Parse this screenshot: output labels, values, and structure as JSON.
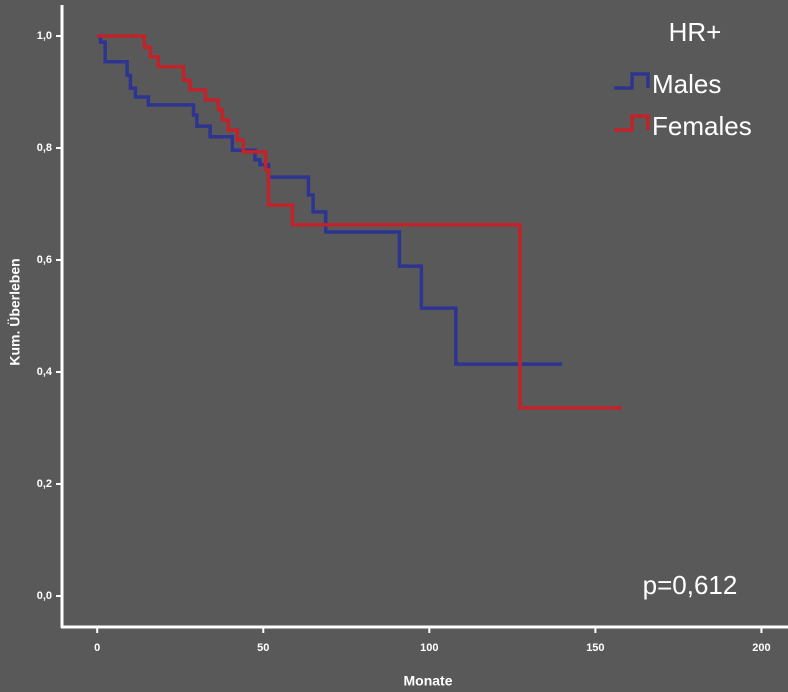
{
  "chart_data": {
    "type": "step",
    "title": "HR+",
    "xlabel": "Monate",
    "ylabel": "Kum. Überleben",
    "annotation": "p=0,612",
    "xlim": [
      -10.6,
      208
    ],
    "ylim": [
      0,
      1
    ],
    "xticks": [
      0,
      50,
      100,
      150,
      200
    ],
    "yticks": [
      {
        "value": 0,
        "label": "0,0"
      },
      {
        "value": 0.2,
        "label": "0,2"
      },
      {
        "value": 0.4,
        "label": "0,4"
      },
      {
        "value": 0.6,
        "label": "0,6"
      },
      {
        "value": 0.8,
        "label": "0,8"
      },
      {
        "value": 1,
        "label": "1,0"
      }
    ],
    "series": [
      {
        "name": "Males",
        "color": "#2e3590",
        "x": [
          0,
          1,
          2.4,
          9,
          10,
          11.5,
          15.4,
          29,
          30,
          34,
          40.7,
          47.5,
          49,
          51.6,
          63.6,
          65,
          68.8,
          91,
          97.6,
          108,
          140
        ],
        "values": [
          1.0,
          0.989,
          0.954,
          0.93,
          0.907,
          0.891,
          0.877,
          0.859,
          0.839,
          0.82,
          0.796,
          0.779,
          0.77,
          0.748,
          0.716,
          0.686,
          0.65,
          0.589,
          0.514,
          0.414,
          0.414
        ]
      },
      {
        "name": "Females",
        "color": "#c0232a",
        "x": [
          0,
          14.2,
          16,
          18.4,
          26,
          28,
          32.6,
          36.5,
          37.7,
          39.5,
          42.2,
          44,
          50.7,
          51.6,
          58.8,
          127.3,
          158
        ],
        "values": [
          1.0,
          0.98,
          0.963,
          0.945,
          0.921,
          0.904,
          0.886,
          0.868,
          0.85,
          0.832,
          0.814,
          0.793,
          0.761,
          0.698,
          0.663,
          0.336,
          0.336
        ]
      }
    ]
  }
}
